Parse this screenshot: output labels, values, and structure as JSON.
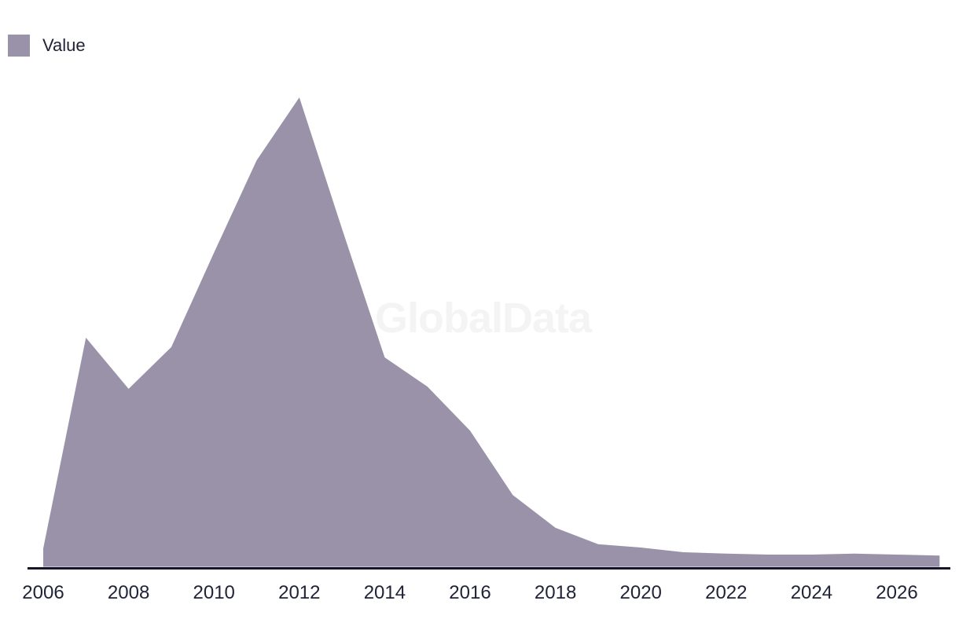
{
  "legend": {
    "label": "Value",
    "swatch_color": "#9a92a8"
  },
  "watermark": "GlobalData",
  "chart_data": {
    "type": "area",
    "title": "",
    "xlabel": "",
    "ylabel": "",
    "x": [
      2006,
      2007,
      2008,
      2009,
      2010,
      2011,
      2012,
      2013,
      2014,
      2015,
      2016,
      2017,
      2018,
      2019,
      2020,
      2021,
      2022,
      2023,
      2024,
      2025,
      2026,
      2027
    ],
    "series": [
      {
        "name": "Value",
        "values": [
          3.9,
          48.8,
          37.9,
          46.8,
          66.9,
          86.6,
          100,
          72.0,
          44.6,
          38.4,
          29.0,
          15.3,
          8.3,
          4.8,
          4.1,
          3.1,
          2.8,
          2.6,
          2.6,
          2.8,
          2.6,
          2.4
        ]
      }
    ],
    "x_tick_labels": [
      "2006",
      "2008",
      "2010",
      "2012",
      "2014",
      "2016",
      "2018",
      "2020",
      "2022",
      "2024",
      "2026"
    ],
    "xlim": [
      2006,
      2027
    ],
    "ylim": [
      0,
      100
    ],
    "y_axis_visible": false,
    "grid": false,
    "legend_position": "top-left",
    "area_color": "#9a92a8",
    "axis_line_color": "#15162b",
    "tick_label_color": "#212338",
    "watermark_color": "#f4f4f4"
  }
}
